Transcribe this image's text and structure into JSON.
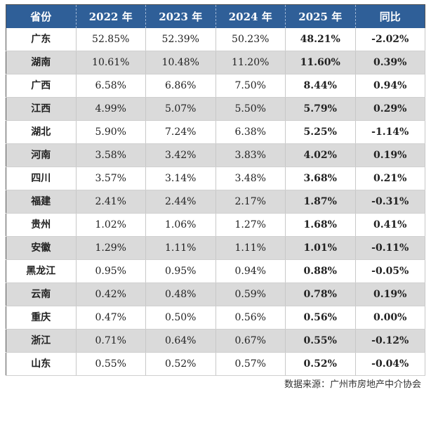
{
  "table": {
    "headers": [
      "省份",
      "2022 年",
      "2023 年",
      "2024 年",
      "2025 年",
      "同比"
    ],
    "rows": [
      [
        "广东",
        "52.85%",
        "52.39%",
        "50.23%",
        "48.21%",
        "-2.02%"
      ],
      [
        "湖南",
        "10.61%",
        "10.48%",
        "11.20%",
        "11.60%",
        "0.39%"
      ],
      [
        "广西",
        "6.58%",
        "6.86%",
        "7.50%",
        "8.44%",
        "0.94%"
      ],
      [
        "江西",
        "4.99%",
        "5.07%",
        "5.50%",
        "5.79%",
        "0.29%"
      ],
      [
        "湖北",
        "5.90%",
        "7.24%",
        "6.38%",
        "5.25%",
        "-1.14%"
      ],
      [
        "河南",
        "3.58%",
        "3.42%",
        "3.83%",
        "4.02%",
        "0.19%"
      ],
      [
        "四川",
        "3.57%",
        "3.14%",
        "3.48%",
        "3.68%",
        "0.21%"
      ],
      [
        "福建",
        "2.41%",
        "2.44%",
        "2.17%",
        "1.87%",
        "-0.31%"
      ],
      [
        "贵州",
        "1.02%",
        "1.06%",
        "1.27%",
        "1.68%",
        "0.41%"
      ],
      [
        "安徽",
        "1.29%",
        "1.11%",
        "1.11%",
        "1.01%",
        "-0.11%"
      ],
      [
        "黑龙江",
        "0.95%",
        "0.95%",
        "0.94%",
        "0.88%",
        "-0.05%"
      ],
      [
        "云南",
        "0.42%",
        "0.48%",
        "0.59%",
        "0.78%",
        "0.19%"
      ],
      [
        "重庆",
        "0.47%",
        "0.50%",
        "0.56%",
        "0.56%",
        "0.00%"
      ],
      [
        "浙江",
        "0.71%",
        "0.64%",
        "0.67%",
        "0.55%",
        "-0.12%"
      ],
      [
        "山东",
        "0.55%",
        "0.52%",
        "0.57%",
        "0.52%",
        "-0.04%"
      ]
    ]
  },
  "source": "数据来源：广州市房地产中介协会",
  "watermark": "广州市房地产中介协会",
  "colors": {
    "header_bg": "#2f5f98",
    "stripe": "#dadada"
  }
}
